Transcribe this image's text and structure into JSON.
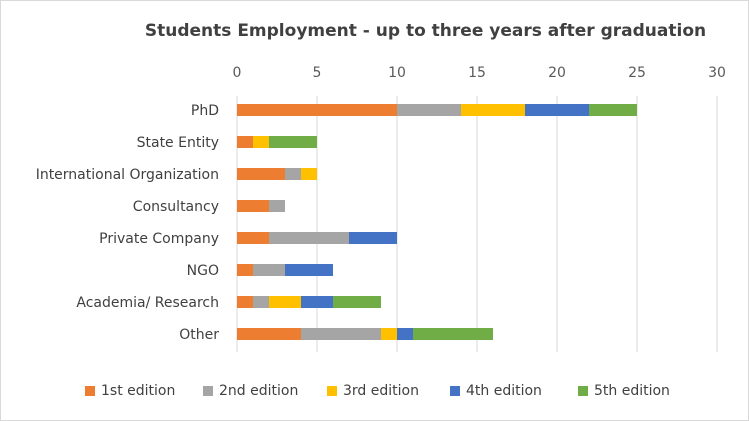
{
  "chart_data": {
    "type": "bar",
    "orientation": "horizontal",
    "stacked": true,
    "title": "Students Employment - up to three years after graduation",
    "categories": [
      "PhD",
      "State Entity",
      "International Organization",
      "Consultancy",
      "Private Company",
      "NGO",
      "Academia/ Research",
      "Other"
    ],
    "series": [
      {
        "name": "1st edition",
        "color": "#ed7d31",
        "values": [
          10,
          1,
          3,
          2,
          2,
          1,
          1,
          4
        ]
      },
      {
        "name": "2nd edition",
        "color": "#a5a5a5",
        "values": [
          4,
          0,
          1,
          1,
          5,
          2,
          1,
          5
        ]
      },
      {
        "name": "3rd edition",
        "color": "#ffc000",
        "values": [
          4,
          1,
          1,
          0,
          0,
          0,
          2,
          1
        ]
      },
      {
        "name": "4th  edition",
        "color": "#4472c4",
        "values": [
          4,
          0,
          0,
          0,
          3,
          3,
          2,
          1
        ]
      },
      {
        "name": "5th edition",
        "color": "#70ad47",
        "values": [
          3,
          3,
          0,
          0,
          0,
          0,
          3,
          5
        ]
      }
    ],
    "xlim": [
      0,
      30
    ],
    "xticks": [
      "0",
      "5",
      "10",
      "15",
      "20",
      "25",
      "30"
    ],
    "grid": true,
    "legend_position": "bottom"
  }
}
